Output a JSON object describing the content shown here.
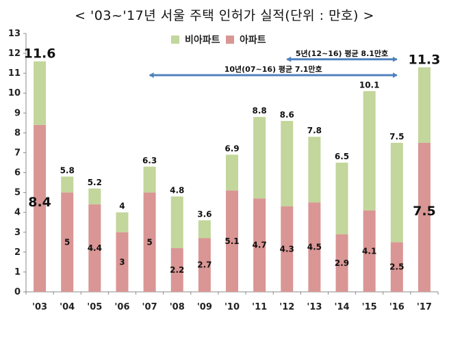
{
  "chart_data": {
    "type": "bar",
    "stacked": true,
    "title": "< '03~'17년 서울 주택 인허가 실적(단위 : 만호) >",
    "categories": [
      "'03",
      "'04",
      "'05",
      "'06",
      "'07",
      "'08",
      "'09",
      "'10",
      "'11",
      "'12",
      "'13",
      "'14",
      "'15",
      "'16",
      "'17"
    ],
    "series": [
      {
        "name": "아파트",
        "color": "#d99694",
        "values": [
          8.4,
          5,
          4.4,
          3,
          5,
          2.2,
          2.7,
          5.1,
          4.7,
          4.3,
          4.5,
          2.9,
          4.1,
          2.5,
          7.5
        ]
      },
      {
        "name": "비아파트",
        "color": "#c3d69b",
        "values": [
          3.2,
          0.8,
          0.8,
          1,
          1.3,
          2.6,
          0.9,
          1.8,
          4.1,
          4.3,
          3.3,
          3.6,
          6,
          5,
          3.8
        ]
      }
    ],
    "totals": [
      11.6,
      5.8,
      5.2,
      4,
      6.3,
      4.8,
      3.6,
      6.9,
      8.8,
      8.6,
      7.8,
      6.5,
      10.1,
      7.5,
      11.3
    ],
    "y_ticks": [
      "0",
      "1",
      "2",
      "3",
      "4",
      "5",
      "6",
      "7",
      "8",
      "9",
      "10",
      "11",
      "12",
      "13"
    ],
    "ylim": [
      0,
      13
    ],
    "xlabel": "",
    "ylabel": "",
    "grid": false,
    "legend": {
      "placement": "top-center",
      "entries": [
        "비아파트",
        "아파트"
      ]
    },
    "annotations": [
      {
        "text": "5년(12~16) 평균 8.1만호",
        "from": "'12",
        "to": "'16",
        "y": 11.7
      },
      {
        "text": "10년(07~16) 평균 7.1만호",
        "from": "'07",
        "to": "'16",
        "y": 10.9
      }
    ],
    "emphasized_bars": [
      "'03",
      "'17"
    ]
  }
}
